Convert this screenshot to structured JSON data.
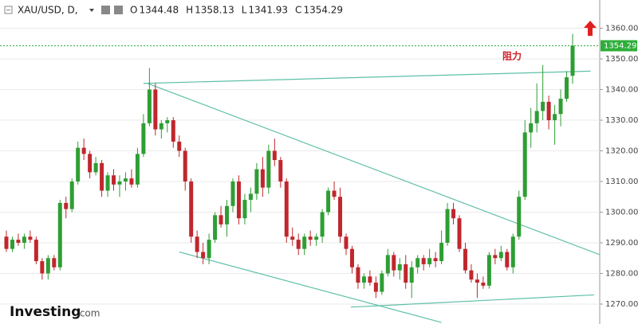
{
  "chart_data": {
    "type": "candlestick",
    "symbol": "XAU/USD, D,",
    "ohlc_labels": [
      "O",
      "H",
      "L",
      "C"
    ],
    "annotation": "阻力",
    "logo": [
      "Investing",
      ".com"
    ],
    "up_color": "#2e9e34",
    "down_color": "#c0272d",
    "last_price_color": "#2eae3a",
    "trendline_color": "#5fbfa8",
    "ylim": [
      1263.5,
      1363.5
    ],
    "yticks": [
      {
        "value": 1270,
        "label": "1270.00"
      },
      {
        "value": 1280,
        "label": "1280.00"
      },
      {
        "value": 1290,
        "label": "1290.00"
      },
      {
        "value": 1300,
        "label": "1300.00"
      },
      {
        "value": 1310,
        "label": "1310.00"
      },
      {
        "value": 1320,
        "label": "1320.00"
      },
      {
        "value": 1330,
        "label": "1330.00"
      },
      {
        "value": 1340,
        "label": "1340.00"
      },
      {
        "value": 1350,
        "label": "1350.00"
      },
      {
        "value": 1360,
        "label": "1360.00"
      }
    ],
    "ohlc": [
      [
        1292,
        1294,
        1287,
        1288
      ],
      [
        1288,
        1292,
        1287,
        1291
      ],
      [
        1291,
        1293,
        1289,
        1290
      ],
      [
        1290,
        1293,
        1288,
        1292
      ],
      [
        1292,
        1294,
        1290,
        1291
      ],
      [
        1291,
        1292,
        1283,
        1284
      ],
      [
        1284,
        1285,
        1278,
        1280
      ],
      [
        1280,
        1286,
        1278,
        1285
      ],
      [
        1285,
        1286,
        1281,
        1282
      ],
      [
        1282,
        1304,
        1281,
        1303
      ],
      [
        1303,
        1305,
        1298,
        1301
      ],
      [
        1301,
        1311,
        1300,
        1310
      ],
      [
        1310,
        1323,
        1309,
        1321
      ],
      [
        1321,
        1324,
        1317,
        1319
      ],
      [
        1319,
        1320,
        1311,
        1313
      ],
      [
        1313,
        1318,
        1312,
        1316
      ],
      [
        1316,
        1317,
        1305,
        1307
      ],
      [
        1307,
        1313,
        1305,
        1312
      ],
      [
        1312,
        1314,
        1307,
        1309
      ],
      [
        1309,
        1312,
        1305,
        1310
      ],
      [
        1310,
        1313,
        1307,
        1311
      ],
      [
        1311,
        1314,
        1308,
        1309
      ],
      [
        1309,
        1321,
        1308,
        1319
      ],
      [
        1319,
        1332,
        1318,
        1329
      ],
      [
        1329,
        1347,
        1328,
        1340
      ],
      [
        1340,
        1342,
        1325,
        1327
      ],
      [
        1327,
        1330,
        1324,
        1329
      ],
      [
        1329,
        1331,
        1326,
        1330
      ],
      [
        1330,
        1331,
        1321,
        1323
      ],
      [
        1323,
        1325,
        1318,
        1320
      ],
      [
        1320,
        1321,
        1307,
        1310
      ],
      [
        1310,
        1311,
        1290,
        1292
      ],
      [
        1292,
        1294,
        1285,
        1287
      ],
      [
        1287,
        1290,
        1283,
        1285
      ],
      [
        1285,
        1293,
        1283,
        1291
      ],
      [
        1291,
        1300,
        1290,
        1299
      ],
      [
        1299,
        1302,
        1295,
        1296
      ],
      [
        1296,
        1304,
        1292,
        1302
      ],
      [
        1302,
        1311,
        1300,
        1310
      ],
      [
        1310,
        1312,
        1296,
        1298
      ],
      [
        1298,
        1306,
        1296,
        1304
      ],
      [
        1304,
        1308,
        1300,
        1306
      ],
      [
        1306,
        1316,
        1304,
        1314
      ],
      [
        1314,
        1318,
        1305,
        1308
      ],
      [
        1308,
        1322,
        1306,
        1320
      ],
      [
        1320,
        1324,
        1315,
        1317
      ],
      [
        1317,
        1318,
        1308,
        1310
      ],
      [
        1310,
        1311,
        1290,
        1292
      ],
      [
        1292,
        1295,
        1289,
        1291
      ],
      [
        1291,
        1293,
        1286,
        1288
      ],
      [
        1288,
        1293,
        1286,
        1292
      ],
      [
        1292,
        1294,
        1289,
        1291
      ],
      [
        1291,
        1293,
        1289,
        1292
      ],
      [
        1292,
        1301,
        1290,
        1300
      ],
      [
        1300,
        1308,
        1299,
        1307
      ],
      [
        1307,
        1310,
        1304,
        1305
      ],
      [
        1305,
        1308,
        1290,
        1292
      ],
      [
        1292,
        1293,
        1286,
        1288
      ],
      [
        1288,
        1289,
        1280,
        1282
      ],
      [
        1282,
        1283,
        1275,
        1277
      ],
      [
        1277,
        1280,
        1275,
        1279
      ],
      [
        1279,
        1281,
        1276,
        1277
      ],
      [
        1277,
        1279,
        1272,
        1274
      ],
      [
        1274,
        1281,
        1273,
        1280
      ],
      [
        1280,
        1288,
        1279,
        1286
      ],
      [
        1286,
        1287,
        1279,
        1281
      ],
      [
        1281,
        1285,
        1278,
        1283
      ],
      [
        1283,
        1286,
        1275,
        1277
      ],
      [
        1277,
        1284,
        1272,
        1282
      ],
      [
        1282,
        1286,
        1280,
        1285
      ],
      [
        1285,
        1286,
        1281,
        1283
      ],
      [
        1283,
        1288,
        1282,
        1285
      ],
      [
        1285,
        1287,
        1282,
        1284
      ],
      [
        1284,
        1294,
        1283,
        1290
      ],
      [
        1290,
        1303,
        1289,
        1301
      ],
      [
        1301,
        1303,
        1296,
        1298
      ],
      [
        1298,
        1299,
        1287,
        1288
      ],
      [
        1288,
        1290,
        1280,
        1281
      ],
      [
        1281,
        1283,
        1277,
        1278
      ],
      [
        1278,
        1280,
        1272,
        1277
      ],
      [
        1277,
        1279,
        1275,
        1276
      ],
      [
        1276,
        1287,
        1275,
        1286
      ],
      [
        1286,
        1288,
        1283,
        1285
      ],
      [
        1285,
        1289,
        1284,
        1287
      ],
      [
        1287,
        1288,
        1281,
        1282
      ],
      [
        1282,
        1293,
        1280,
        1292
      ],
      [
        1292,
        1307,
        1291,
        1305
      ],
      [
        1305,
        1330,
        1304,
        1326
      ],
      [
        1326,
        1334,
        1321,
        1329
      ],
      [
        1329,
        1342,
        1326,
        1333
      ],
      [
        1333,
        1348,
        1330,
        1336
      ],
      [
        1336,
        1338,
        1327,
        1330
      ],
      [
        1330,
        1335,
        1322,
        1332
      ],
      [
        1332,
        1340,
        1328,
        1337
      ],
      [
        1337,
        1346,
        1336,
        1344
      ],
      [
        1344.48,
        1358.13,
        1341.93,
        1354.29
      ]
    ],
    "trendlines": [
      {
        "x": [
          23,
          98
        ],
        "y": [
          1342,
          1346
        ]
      },
      {
        "x": [
          23.7,
          103.8
        ],
        "y": [
          1342,
          1283
        ]
      },
      {
        "x": [
          29,
          73
        ],
        "y": [
          1287,
          1264
        ]
      },
      {
        "x": [
          57.8,
          98.6
        ],
        "y": [
          1269,
          1273
        ]
      }
    ]
  }
}
